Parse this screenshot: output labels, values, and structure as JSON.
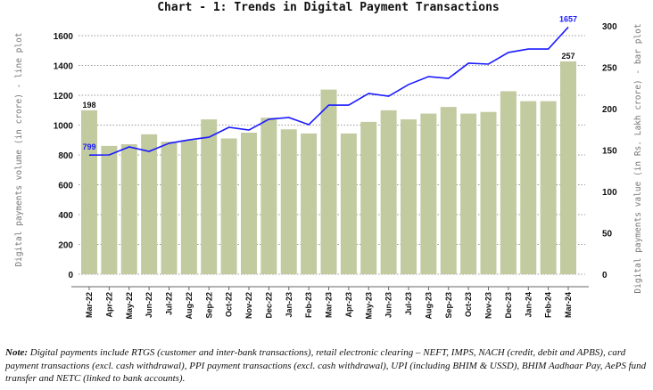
{
  "chart_data": {
    "type": "bar+line",
    "title": "Chart - 1: Trends in Digital Payment Transactions",
    "categories": [
      "Mar-22",
      "Apr-22",
      "May-22",
      "Jun-22",
      "Jul-22",
      "Aug-22",
      "Sep-22",
      "Oct-22",
      "Nov-22",
      "Dec-22",
      "Jan-23",
      "Feb-23",
      "Mar-23",
      "Apr-23",
      "May-23",
      "Jun-23",
      "Jul-23",
      "Aug-23",
      "Sep-23",
      "Oct-23",
      "Nov-23",
      "Dec-23",
      "Jan-24",
      "Feb-24",
      "Mar-24"
    ],
    "ylabel_left": "Digital payments volume (in crore) - line plot",
    "ylabel_right": "Digital payments value (in Rs. Lakh crore) - bar plot",
    "ylim_left": [
      0,
      1700
    ],
    "yticks_left": [
      0,
      200,
      400,
      600,
      800,
      1000,
      1200,
      1400,
      1600
    ],
    "ylim_right": [
      0,
      318
    ],
    "yticks_right": [
      0,
      50,
      100,
      150,
      200,
      250,
      300
    ],
    "grid": "horizontal dotted",
    "series": [
      {
        "kind": "bar",
        "axis": "right",
        "color": "#c2caa0",
        "values": [
          198,
          155,
          157,
          169,
          160,
          162,
          187,
          164,
          171,
          189,
          175,
          170,
          223,
          170,
          184,
          198,
          187,
          194,
          202,
          194,
          196,
          221,
          209,
          209,
          257
        ]
      },
      {
        "kind": "line",
        "axis": "left",
        "color": "#1a1aff",
        "values": [
          799,
          800,
          854,
          824,
          878,
          901,
          919,
          985,
          967,
          1039,
          1051,
          1003,
          1134,
          1134,
          1212,
          1194,
          1272,
          1325,
          1313,
          1415,
          1409,
          1487,
          1510,
          1510,
          1657
        ]
      }
    ],
    "data_labels": {
      "bar_first": "198",
      "bar_last": "257",
      "line_first": "799",
      "line_last": "1657"
    }
  },
  "note": {
    "label": "Note:",
    "text": " Digital payments include RTGS (customer and inter-bank transactions), retail electronic clearing – NEFT, IMPS, NACH (credit, debit and APBS), card payment transactions (excl. cash withdrawal), PPI payment transactions (excl. cash withdrawal), UPI (including BHIM & USSD), BHIM Aadhaar Pay, AePS fund transfer and NETC (linked to bank accounts)."
  }
}
